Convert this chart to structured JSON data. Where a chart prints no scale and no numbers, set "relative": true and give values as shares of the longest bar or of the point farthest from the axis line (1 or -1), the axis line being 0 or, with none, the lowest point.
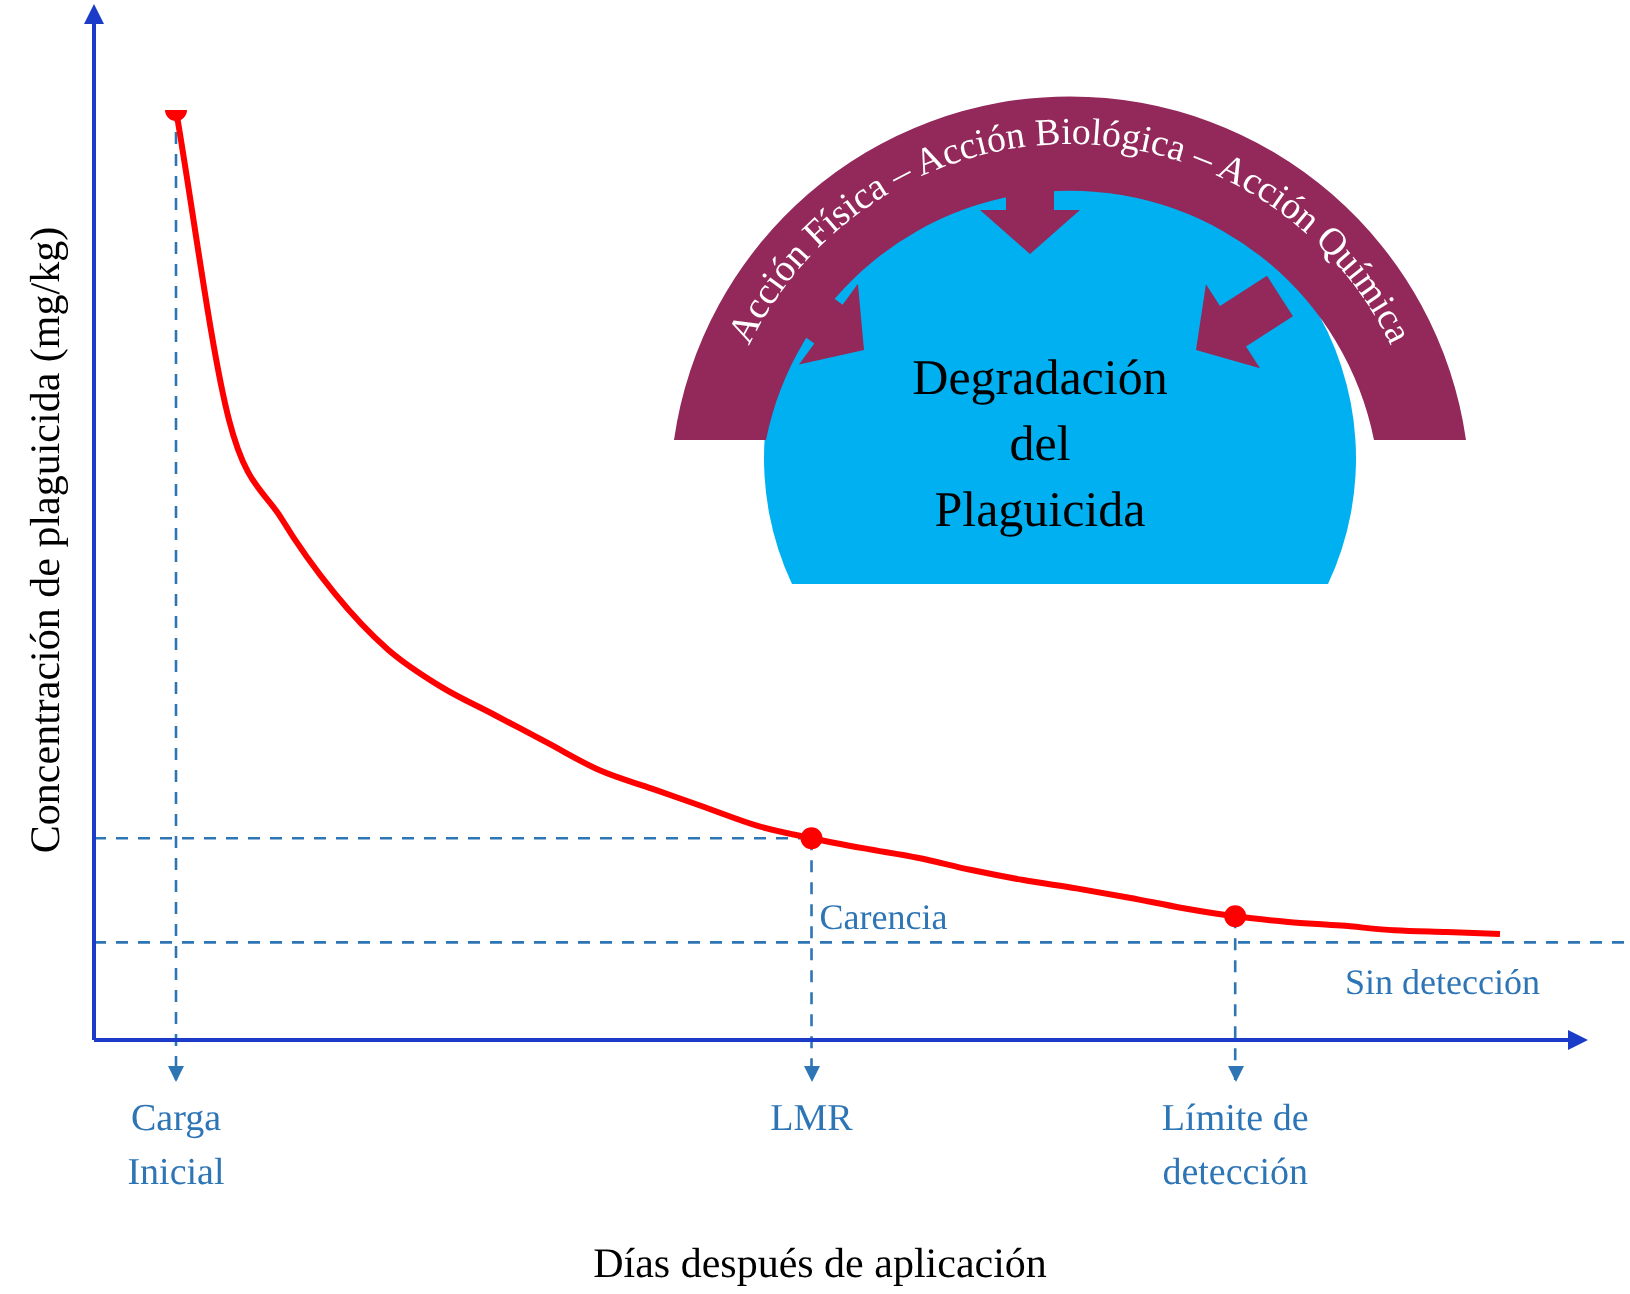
{
  "chart_data": {
    "type": "line",
    "relative": true,
    "xlabel": "Días después de aplicación",
    "ylabel": "Concentración de plaguicida (mg/kg)",
    "categories": [
      "Carga\nInicial",
      null,
      null,
      null,
      null,
      null,
      null,
      null,
      null,
      null,
      null,
      null,
      "LMR",
      null,
      null,
      null,
      null,
      null,
      null,
      null,
      "Límite de\ndetección",
      null,
      null,
      null,
      null,
      null
    ],
    "legend": false,
    "series": [
      {
        "color": "#ff0000",
        "marker": "none",
        "values": [
          1,
          0.667,
          0.56,
          0.48,
          0.42,
          0.38,
          0.35,
          0.32,
          0.29,
          0.27,
          0.25,
          0.23,
          0.217,
          0.206,
          0.196,
          0.183,
          0.172,
          0.163,
          0.153,
          0.142,
          0.133,
          0.127,
          0.123,
          0.118,
          0.116,
          0.114
        ]
      },
      {
        "type": "scatter",
        "color": "#ff0000",
        "marker": "circle",
        "values": [
          1,
          null,
          null,
          null,
          null,
          null,
          null,
          null,
          null,
          null,
          null,
          null,
          0.217,
          null,
          null,
          null,
          null,
          null,
          null,
          null,
          0.133,
          null,
          null,
          null,
          null,
          null
        ]
      }
    ],
    "ref_lines": [
      {
        "axis": "y",
        "value": 0.217,
        "color": "#2e75b6",
        "line_style": "dashed"
      },
      {
        "axis": "y",
        "value": 0.105,
        "label": "Sin detección",
        "color": "#2e75b6",
        "line_style": "dashed"
      },
      {
        "axis": "x",
        "value": "Carga\nInicial",
        "color": "#2e75b6",
        "line_style": "dashed"
      },
      {
        "axis": "x",
        "value": "LMR",
        "color": "#2e75b6",
        "line_style": "dashed"
      },
      {
        "axis": "x",
        "value": "Límite de\ndetección",
        "color": "#2e75b6",
        "line_style": "dashed"
      }
    ],
    "annotations": [
      {
        "text": "Carencia",
        "x": "LMR",
        "y": 0.13
      },
      "Acción Física – Acción Biológica – Acción Química",
      "Degradación\ndel\nPlaguicida"
    ]
  }
}
